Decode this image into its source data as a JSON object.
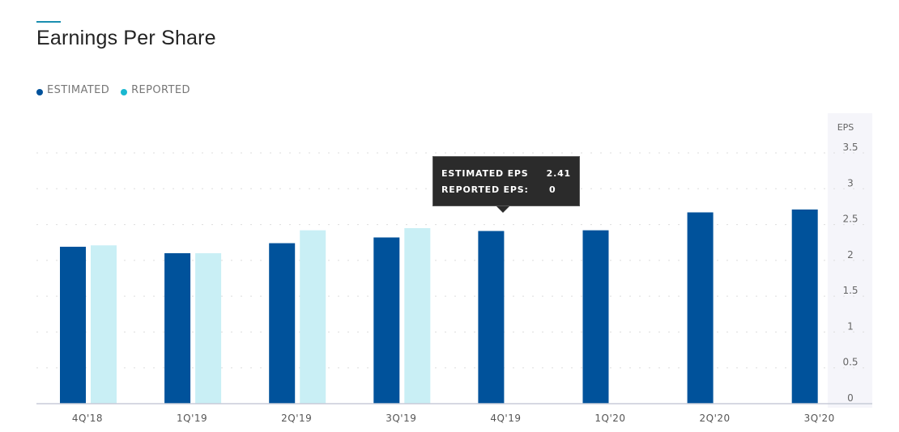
{
  "title": "Earnings Per Share",
  "legend": [
    {
      "label": "ESTIMATED",
      "color": "#00529b"
    },
    {
      "label": "REPORTED",
      "color": "#1ab8d0"
    }
  ],
  "tooltip": {
    "estimated_label": "ESTIMATED EPS",
    "estimated_value": "2.41",
    "reported_label": "REPORTED EPS:",
    "reported_value": "0"
  },
  "chart_data": {
    "type": "bar",
    "ylabel": "EPS",
    "ylim": [
      0,
      3.5
    ],
    "yticks": [
      "0",
      "0.5",
      "1",
      "1.5",
      "2",
      "2.5",
      "3",
      "3.5"
    ],
    "categories": [
      "4Q'18",
      "1Q'19",
      "2Q'19",
      "3Q'19",
      "4Q'19",
      "1Q'20",
      "2Q'20",
      "3Q'20"
    ],
    "grid": true,
    "series": [
      {
        "name": "ESTIMATED",
        "color": "#00529b",
        "values": [
          2.19,
          2.1,
          2.24,
          2.32,
          2.41,
          2.42,
          2.67,
          2.71
        ]
      },
      {
        "name": "REPORTED",
        "color": "#c9eff5",
        "values": [
          2.21,
          2.1,
          2.42,
          2.45,
          null,
          null,
          null,
          null
        ]
      }
    ]
  }
}
